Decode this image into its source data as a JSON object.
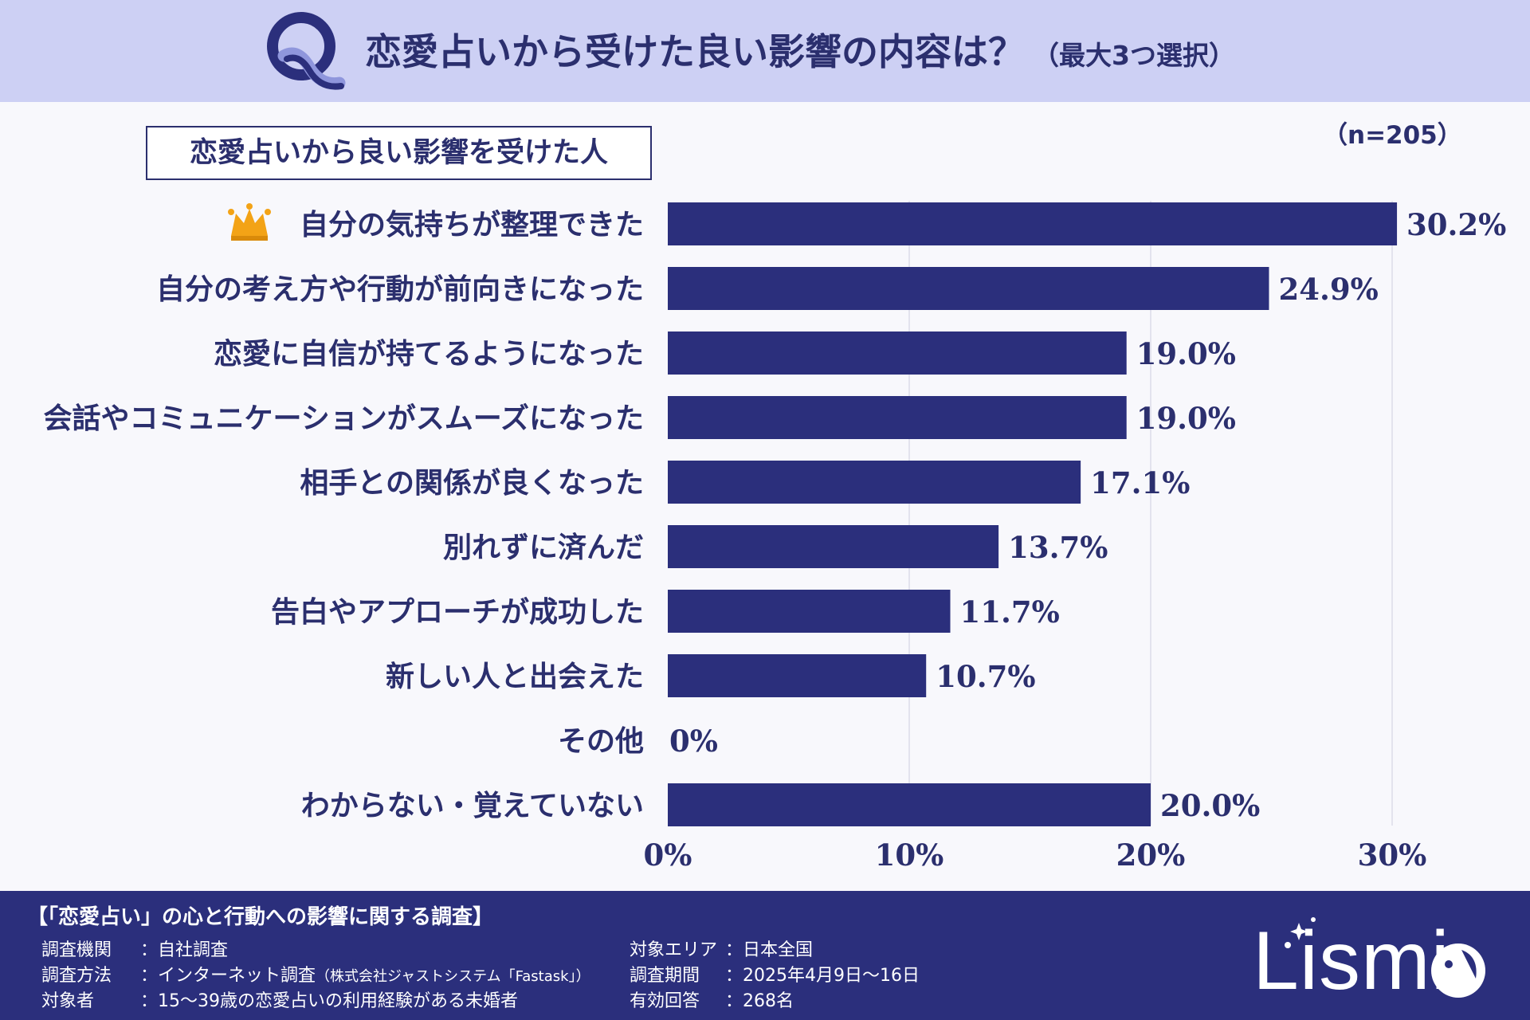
{
  "header": {
    "title": "恋愛占いから受けた良い影響の内容は？",
    "subtitle": "（最大3つ選択）"
  },
  "subtitle_box": "恋愛占いから良い影響を受けた人",
  "n_label": "（n=205）",
  "chart_data": {
    "type": "bar",
    "orientation": "horizontal",
    "categories": [
      "自分の気持ちが整理できた",
      "自分の考え方や行動が前向きになった",
      "恋愛に自信が持てるようになった",
      "会話やコミュニケーションがスムーズになった",
      "相手との関係が良くなった",
      "別れずに済んだ",
      "告白やアプローチが成功した",
      "新しい人と出会えた",
      "その他",
      "わからない・覚えていない"
    ],
    "values": [
      30.2,
      24.9,
      19.0,
      19.0,
      17.1,
      13.7,
      11.7,
      10.7,
      0,
      20.0
    ],
    "value_labels": [
      "30.2%",
      "24.9%",
      "19.0%",
      "19.0%",
      "17.1%",
      "13.7%",
      "11.7%",
      "10.7%",
      "0%",
      "20.0%"
    ],
    "xlim": [
      0,
      30
    ],
    "xticks": [
      "0%",
      "10%",
      "20%",
      "30%"
    ],
    "grid": true,
    "bar_color": "#2b2f7c",
    "top_item_icon": "crown-icon"
  },
  "footer": {
    "title": "【「恋愛占い」の心と行動への影響に関する調査】",
    "left": [
      {
        "key": "調査機関",
        "value": "：自社調査"
      },
      {
        "key": "調査方法",
        "value": "：インターネット調査",
        "note": "（株式会社ジャストシステム「Fastask」）"
      },
      {
        "key": "対象者",
        "value": "：15～39歳の恋愛占いの利用経験がある未婚者"
      }
    ],
    "right": [
      {
        "key": "対象エリア",
        "value": "：日本全国"
      },
      {
        "key": "調査期間",
        "value": "：2025年4月9日～16日"
      },
      {
        "key": "有効回答",
        "value": "：268名"
      }
    ],
    "logo_text": "Lismi"
  },
  "colors": {
    "header_bg": "#cdd0f4",
    "navy": "#2b2f7c",
    "text": "#2b2f6e",
    "crown": "#f3a316"
  }
}
